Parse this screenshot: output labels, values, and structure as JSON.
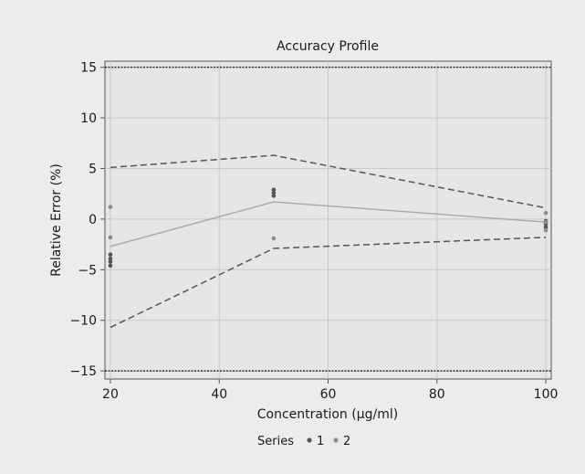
{
  "chart_data": {
    "type": "scatter",
    "title": "Accuracy Profile",
    "xlabel": "Concentration (µg/ml)",
    "ylabel": "Relative Error (%)",
    "xlim": [
      19,
      101
    ],
    "ylim": [
      -15.8,
      15.6
    ],
    "xticks": [
      20,
      40,
      60,
      80,
      100
    ],
    "yticks": [
      15,
      10,
      5,
      0,
      -5,
      -10,
      -15
    ],
    "grid": true,
    "legend": {
      "title": "Series",
      "placement": "bottom",
      "entries": [
        "1",
        "2"
      ]
    },
    "series": [
      {
        "name": "1",
        "color": "#555555",
        "points": [
          {
            "x": 20,
            "y": -3.5
          },
          {
            "x": 20,
            "y": -3.9
          },
          {
            "x": 20,
            "y": -4.2
          },
          {
            "x": 20,
            "y": -4.6
          },
          {
            "x": 50,
            "y": 2.9
          },
          {
            "x": 50,
            "y": 2.6
          },
          {
            "x": 50,
            "y": 2.3
          },
          {
            "x": 100,
            "y": -0.2
          },
          {
            "x": 100,
            "y": -0.5
          },
          {
            "x": 100,
            "y": -0.8
          }
        ]
      },
      {
        "name": "2",
        "color": "#8c8c8c",
        "points": [
          {
            "x": 20,
            "y": 1.2
          },
          {
            "x": 20,
            "y": -1.8
          },
          {
            "x": 50,
            "y": -1.9
          },
          {
            "x": 100,
            "y": 0.6
          },
          {
            "x": 100,
            "y": -0.3
          },
          {
            "x": 100,
            "y": -1.1
          }
        ]
      }
    ],
    "lines": [
      {
        "kind": "mean-bias",
        "style": "solid",
        "color": "#a8a8a8",
        "x": [
          20,
          50,
          100
        ],
        "y": [
          -2.7,
          1.7,
          -0.3
        ]
      },
      {
        "kind": "upper-tolerance",
        "style": "dashed",
        "color": "#555555",
        "x": [
          20,
          50,
          100
        ],
        "y": [
          5.1,
          6.3,
          1.1
        ]
      },
      {
        "kind": "lower-tolerance",
        "style": "dashed",
        "color": "#555555",
        "x": [
          20,
          50,
          100
        ],
        "y": [
          -10.7,
          -2.9,
          -1.8
        ]
      },
      {
        "kind": "upper-acceptance",
        "style": "dotted",
        "color": "#333333",
        "x": [
          19,
          101
        ],
        "y": [
          15,
          15
        ]
      },
      {
        "kind": "lower-acceptance",
        "style": "dotted",
        "color": "#333333",
        "x": [
          19,
          101
        ],
        "y": [
          -15,
          -15
        ]
      }
    ]
  }
}
